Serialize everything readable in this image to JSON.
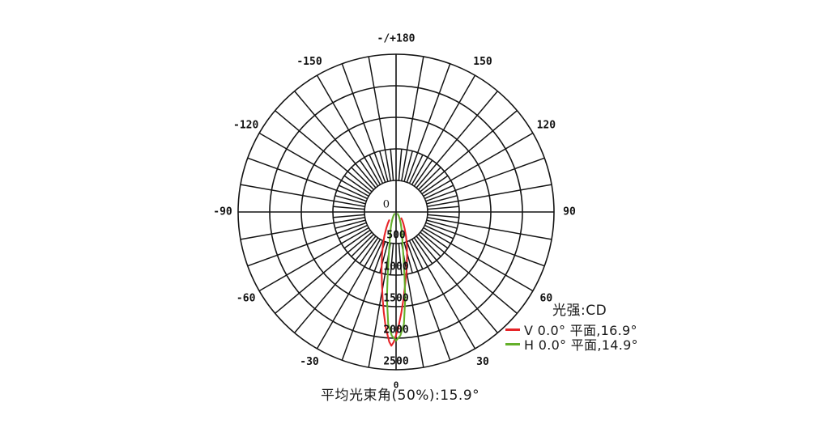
{
  "chart_data": {
    "type": "line",
    "projection": "polar",
    "zero_angle_position": "bottom",
    "radial_unit": "CD",
    "ring_step_cd": 500,
    "max_cd": 2500,
    "radial_ticks": [
      0,
      500,
      1000,
      1500,
      2000,
      2500
    ],
    "spoke_step_outer_deg": 10,
    "spoke_step_inner_deg": 5,
    "grid_color": "#141414",
    "text_color": "#111111",
    "angle_labels": [
      {
        "angle": 180,
        "label": "-/+180"
      },
      {
        "angle": 150,
        "label": "150"
      },
      {
        "angle": 120,
        "label": "120"
      },
      {
        "angle": 90,
        "label": "90"
      },
      {
        "angle": 60,
        "label": "60"
      },
      {
        "angle": 30,
        "label": "30"
      },
      {
        "angle": 0,
        "label": "0"
      },
      {
        "angle": -30,
        "label": "-30"
      },
      {
        "angle": -60,
        "label": "-60"
      },
      {
        "angle": -90,
        "label": "-90"
      },
      {
        "angle": -120,
        "label": "-120"
      },
      {
        "angle": -150,
        "label": "-150"
      }
    ],
    "legend_title": "光强:CD",
    "caption": "平均光束角(50%):15.9°",
    "series": [
      {
        "name": "V",
        "plane": "0.0° 平面",
        "beam_angle_50pct": "16.9°",
        "legend_label": "V 0.0° 平面,16.9°",
        "color": "#e62428",
        "peak_cd": 2120,
        "points": [
          [
            -40,
            170
          ],
          [
            -36,
            220
          ],
          [
            -31,
            300
          ],
          [
            -26,
            420
          ],
          [
            -22,
            550
          ],
          [
            -18,
            720
          ],
          [
            -14,
            950
          ],
          [
            -11,
            1170
          ],
          [
            -9,
            1370
          ],
          [
            -7,
            1600
          ],
          [
            -5,
            1850
          ],
          [
            -3,
            2060
          ],
          [
            -2,
            2120
          ],
          [
            -1,
            2060
          ],
          [
            1,
            1850
          ],
          [
            3,
            1600
          ],
          [
            5,
            1370
          ],
          [
            7,
            1170
          ],
          [
            10,
            950
          ],
          [
            14,
            720
          ],
          [
            18,
            550
          ],
          [
            22,
            420
          ],
          [
            27,
            300
          ],
          [
            32,
            220
          ],
          [
            36,
            170
          ],
          [
            40,
            130
          ]
        ]
      },
      {
        "name": "H",
        "plane": "0.0° 平面",
        "beam_angle_50pct": "14.9°",
        "legend_label": "H 0.0° 平面,14.9°",
        "color": "#64b02a",
        "peak_cd": 2040,
        "points": [
          [
            -40,
            40
          ],
          [
            -33,
            80
          ],
          [
            -27,
            130
          ],
          [
            -22,
            200
          ],
          [
            -18,
            280
          ],
          [
            -14,
            400
          ],
          [
            -11,
            560
          ],
          [
            -9,
            760
          ],
          [
            -7.5,
            1020
          ],
          [
            -6,
            1380
          ],
          [
            -4,
            1780
          ],
          [
            -2,
            1960
          ],
          [
            0,
            2040
          ],
          [
            2,
            1960
          ],
          [
            4,
            1780
          ],
          [
            6,
            1380
          ],
          [
            7.5,
            1020
          ],
          [
            9,
            760
          ],
          [
            11,
            560
          ],
          [
            14,
            400
          ],
          [
            18,
            280
          ],
          [
            22,
            200
          ],
          [
            27,
            130
          ],
          [
            33,
            80
          ],
          [
            40,
            40
          ]
        ]
      }
    ]
  }
}
